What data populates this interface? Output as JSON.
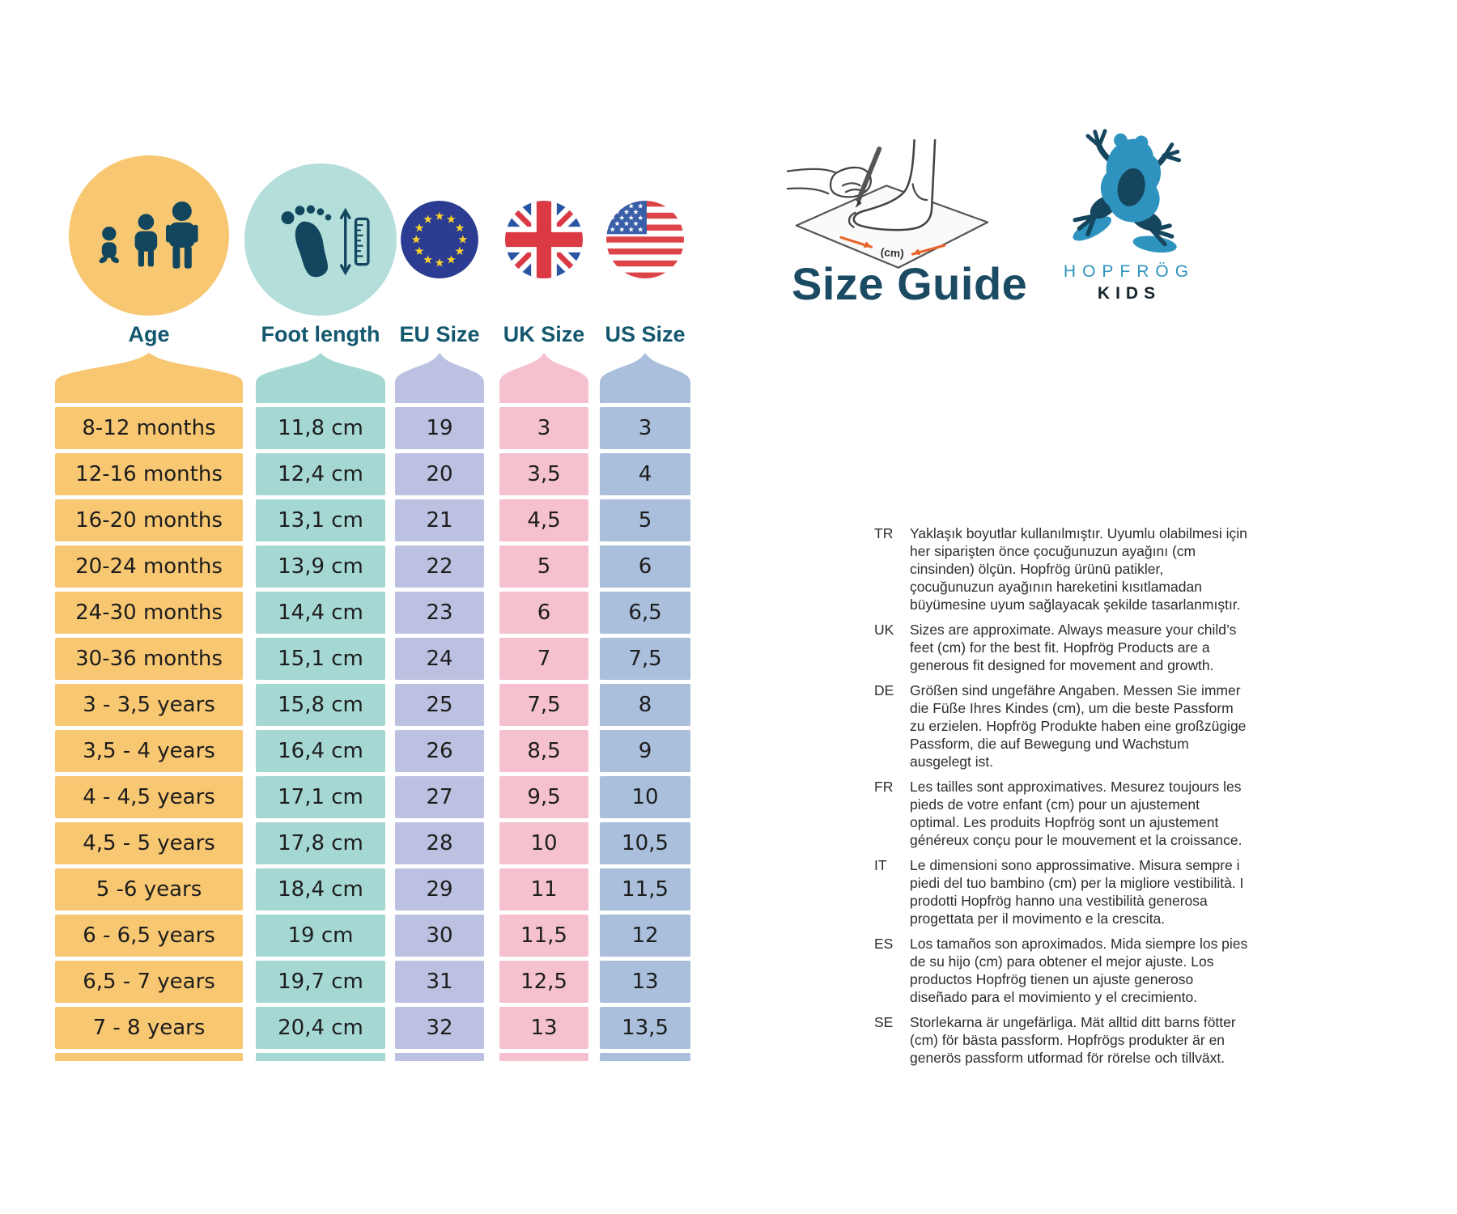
{
  "title": "Size Guide",
  "brand": {
    "name": "HOPFRÖG",
    "sub": "KIDS"
  },
  "illustration": {
    "measure_label": "(cm)",
    "arrow_color": "#E8662D"
  },
  "palette": {
    "dark_teal_icon": "#11465E",
    "header_text": "#14586F",
    "title_text": "#1B4A63",
    "frog_light": "#2E94BF",
    "frog_dark": "#16465D",
    "eu_blue": "#2B3C92",
    "eu_star": "#F8D12E",
    "uk_blue": "#2A55A5",
    "uk_red": "#DB3A45",
    "us_red": "#DC4448",
    "us_blue": "#3A5FA9"
  },
  "table": {
    "columns": [
      {
        "id": "age",
        "label": "Age",
        "color": "#F8C772",
        "icon": "children-icon"
      },
      {
        "id": "foot",
        "label": "Foot length",
        "color": "#A5D8D3",
        "icon": "foot-ruler-icon"
      },
      {
        "id": "eu",
        "label": "EU Size",
        "color": "#BDC1E1",
        "icon": "eu-flag-icon"
      },
      {
        "id": "uk",
        "label": "UK Size",
        "color": "#F5C1CE",
        "icon": "uk-flag-icon"
      },
      {
        "id": "us",
        "label": "US Size",
        "color": "#A9BFDC",
        "icon": "us-flag-icon"
      }
    ],
    "rows": [
      {
        "age": "8-12 months",
        "foot": "11,8 cm",
        "eu": "19",
        "uk": "3",
        "us": "3"
      },
      {
        "age": "12-16 months",
        "foot": "12,4 cm",
        "eu": "20",
        "uk": "3,5",
        "us": "4"
      },
      {
        "age": "16-20 months",
        "foot": "13,1 cm",
        "eu": "21",
        "uk": "4,5",
        "us": "5"
      },
      {
        "age": "20-24 months",
        "foot": "13,9 cm",
        "eu": "22",
        "uk": "5",
        "us": "6"
      },
      {
        "age": "24-30 months",
        "foot": "14,4 cm",
        "eu": "23",
        "uk": "6",
        "us": "6,5"
      },
      {
        "age": "30-36 months",
        "foot": "15,1 cm",
        "eu": "24",
        "uk": "7",
        "us": "7,5"
      },
      {
        "age": "3 - 3,5 years",
        "foot": "15,8 cm",
        "eu": "25",
        "uk": "7,5",
        "us": "8"
      },
      {
        "age": "3,5 - 4 years",
        "foot": "16,4 cm",
        "eu": "26",
        "uk": "8,5",
        "us": "9"
      },
      {
        "age": "4 - 4,5 years",
        "foot": "17,1 cm",
        "eu": "27",
        "uk": "9,5",
        "us": "10"
      },
      {
        "age": "4,5 - 5 years",
        "foot": "17,8 cm",
        "eu": "28",
        "uk": "10",
        "us": "10,5"
      },
      {
        "age": "5 -6 years",
        "foot": "18,4 cm",
        "eu": "29",
        "uk": "11",
        "us": "11,5"
      },
      {
        "age": "6 - 6,5 years",
        "foot": "19 cm",
        "eu": "30",
        "uk": "11,5",
        "us": "12"
      },
      {
        "age": "6,5 - 7 years",
        "foot": "19,7 cm",
        "eu": "31",
        "uk": "12,5",
        "us": "13"
      },
      {
        "age": "7 - 8 years",
        "foot": "20,4 cm",
        "eu": "32",
        "uk": "13",
        "us": "13,5"
      }
    ]
  },
  "notes": [
    {
      "lang": "TR",
      "text": "Yaklaşık boyutlar kullanılmıştır. Uyumlu olabilmesi için her siparişten önce çocuğunuzun ayağını (cm cinsinden) ölçün. Hopfrög ürünü patikler, çocuğunuzun ayağının hareketini kısıtlamadan büyümesine uyum sağlayacak şekilde tasarlanmıştır."
    },
    {
      "lang": "UK",
      "text": "Sizes are approximate. Always measure your child’s feet (cm) for the best fit.  Hopfrög Products are a generous fit designed for movement and growth."
    },
    {
      "lang": "DE",
      "text": "Größen sind ungefähre Angaben. Messen Sie immer die Füße Ihres Kindes (cm), um die beste Passform zu erzielen. Hopfrög Produkte haben eine großzügige Passform, die auf Bewegung und Wachstum ausgelegt ist."
    },
    {
      "lang": "FR",
      "text": "Les tailles sont approximatives. Mesurez toujours les pieds de votre enfant (cm) pour un ajustement optimal. Les produits Hopfrög sont un ajustement généreux conçu pour le mouvement et la croissance."
    },
    {
      "lang": "IT",
      "text": "Le dimensioni sono approssimative. Misura sempre i piedi del tuo bambino (cm) per la migliore vestibilità. I prodotti Hopfrög hanno una vestibilità generosa progettata per il movimento e la crescita."
    },
    {
      "lang": "ES",
      "text": "Los tamaños son aproximados. Mida siempre los pies de su hijo (cm) para obtener el mejor ajuste. Los productos Hopfrög tienen un ajuste generoso diseñado para el movimiento y el crecimiento."
    },
    {
      "lang": "SE",
      "text": "Storlekarna är ungefärliga. Mät alltid ditt barns fötter (cm) för bästa passform. Hopfrögs produkter är en generös passform utformad för rörelse och tillväxt."
    }
  ]
}
